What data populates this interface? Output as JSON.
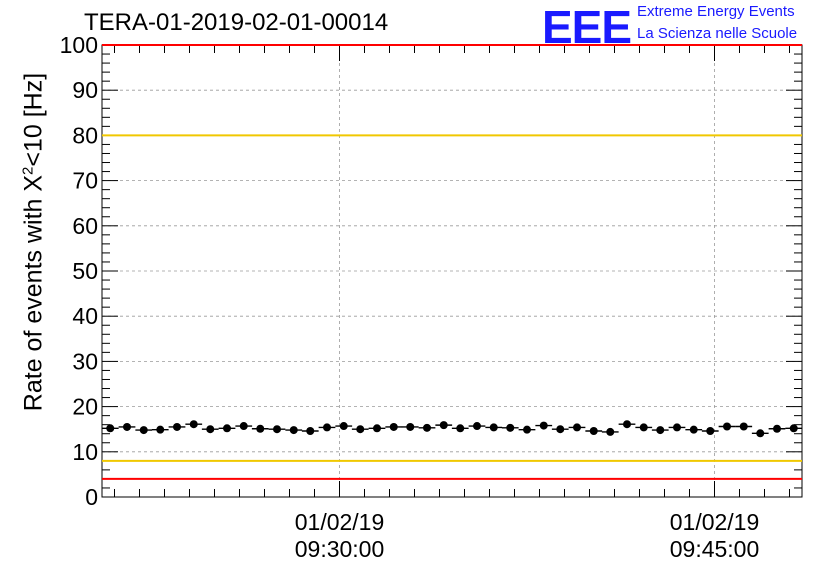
{
  "title": "TERA-01-2019-02-01-00014",
  "logo": {
    "text": "EEE",
    "line1": "Extreme Energy Events",
    "line2": "La Scienza nelle Scuole"
  },
  "colors": {
    "red_line": "#ff0000",
    "yellow_line": "#f0c800",
    "marker": "#000000",
    "grid": "#9a9a9a",
    "logo": "#1a1aff"
  },
  "chart_data": {
    "type": "scatter",
    "title": "TERA-01-2019-02-01-00014",
    "ylabel_prefix": "Rate of events with X",
    "ylabel_sup": "2",
    "ylabel_suffix": "<10 [Hz]",
    "ylim": [
      0,
      100
    ],
    "yticks": [
      0,
      10,
      20,
      30,
      40,
      50,
      60,
      70,
      80,
      90,
      100
    ],
    "x_range_minutes": [
      -9.5,
      18.5
    ],
    "xticks": [
      {
        "minutes": 0,
        "date": "01/02/19",
        "time": "09:30:00"
      },
      {
        "minutes": 15,
        "date": "01/02/19",
        "time": "09:45:00"
      }
    ],
    "grid": true,
    "reference_lines": [
      {
        "value": 100,
        "color": "red"
      },
      {
        "value": 80,
        "color": "yellow"
      },
      {
        "value": 8,
        "color": "yellow"
      },
      {
        "value": 4,
        "color": "red"
      }
    ],
    "series": [
      {
        "x_minutes": [
          -9.17,
          -8.5,
          -7.83,
          -7.17,
          -6.5,
          -5.83,
          -5.17,
          -4.5,
          -3.83,
          -3.17,
          -2.5,
          -1.83,
          -1.17,
          -0.5,
          0.17,
          0.83,
          1.5,
          2.17,
          2.83,
          3.5,
          4.17,
          4.83,
          5.5,
          6.17,
          6.83,
          7.5,
          8.17,
          8.83,
          9.5,
          10.17,
          10.83,
          11.5,
          12.17,
          12.83,
          13.5,
          14.17,
          14.83,
          15.5,
          16.17,
          16.83,
          17.5,
          18.17
        ],
        "values": [
          15.2,
          15.5,
          14.8,
          14.9,
          15.5,
          16.1,
          15.0,
          15.2,
          15.7,
          15.1,
          15.0,
          14.8,
          14.6,
          15.4,
          15.7,
          15.0,
          15.2,
          15.5,
          15.5,
          15.3,
          15.9,
          15.2,
          15.7,
          15.4,
          15.3,
          14.9,
          15.8,
          15.0,
          15.4,
          14.6,
          14.4,
          16.1,
          15.4,
          14.8,
          15.4,
          14.9,
          14.6,
          15.6,
          15.6,
          14.1,
          15.1,
          15.2
        ],
        "errors": [
          0.6,
          0.6,
          0.6,
          0.6,
          0.6,
          0.6,
          0.6,
          0.6,
          0.6,
          0.6,
          0.6,
          0.6,
          0.6,
          0.6,
          0.6,
          0.6,
          0.6,
          0.6,
          0.6,
          0.6,
          0.6,
          0.6,
          0.6,
          0.6,
          0.6,
          0.6,
          0.6,
          0.6,
          0.6,
          0.6,
          0.6,
          0.6,
          0.6,
          0.6,
          0.6,
          0.6,
          0.6,
          0.6,
          0.6,
          0.6,
          0.6,
          0.6
        ]
      }
    ]
  }
}
